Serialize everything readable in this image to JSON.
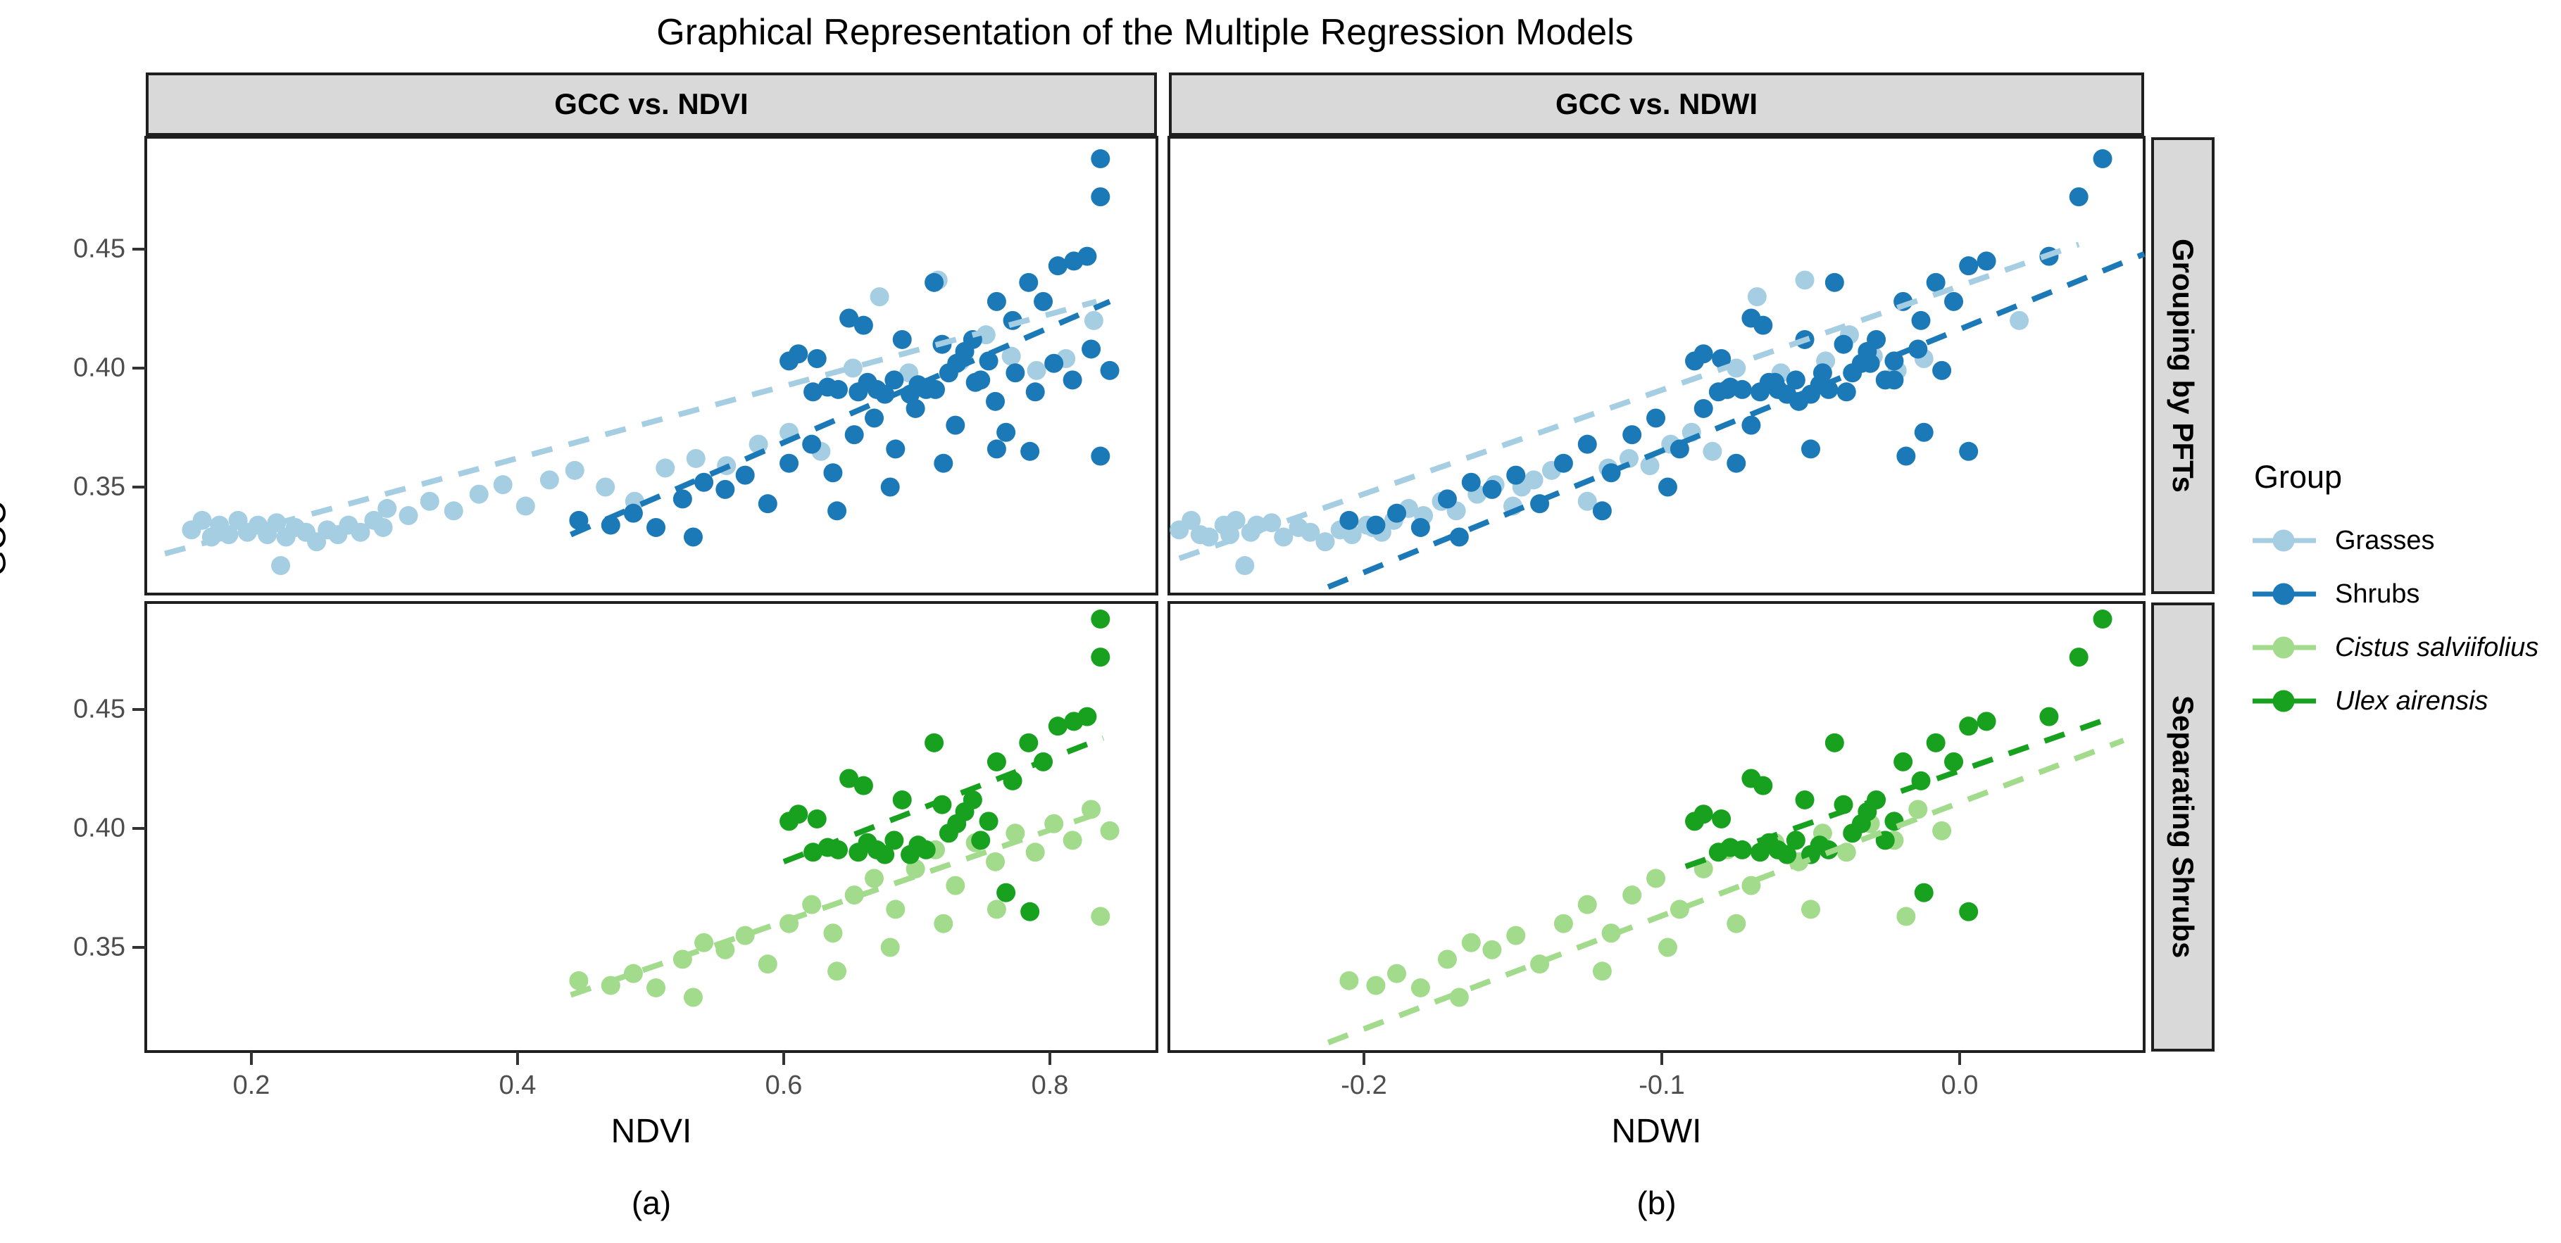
{
  "title": "Graphical Representation of the Multiple Regression Models",
  "facets": {
    "col_labels": [
      "GCC vs. NDVI",
      "GCC vs. NDWI"
    ],
    "row_labels": [
      "Grouping by PFTs",
      "Separating Shrubs"
    ]
  },
  "axes": {
    "y_title": "GCC",
    "x_titles": [
      "NDVI",
      "NDWI"
    ],
    "y_tick_labels": [
      "0.45",
      "0.40",
      "0.35"
    ],
    "x_tick_labels_ndvi": [
      "0.2",
      "0.4",
      "0.6",
      "0.8"
    ],
    "x_tick_labels_ndwi": [
      "-0.2",
      "-0.1",
      "0.0"
    ]
  },
  "captions": [
    "(a)",
    "(b)"
  ],
  "legend": {
    "title": "Group",
    "items": [
      {
        "label": "Grasses",
        "color": "#A6CEE3",
        "italic": false
      },
      {
        "label": "Shrubs",
        "color": "#1B79B7",
        "italic": false
      },
      {
        "label": "Cistus salviifolius",
        "color": "#A2DB8C",
        "italic": true
      },
      {
        "label": "Ulex airensis",
        "color": "#18A11F",
        "italic": true
      }
    ]
  },
  "colors": {
    "grasses": "#A6CEE3",
    "shrubs": "#1B79B7",
    "cistus": "#A2DB8C",
    "ulex": "#18A11F",
    "strip_bg": "#D9D9D9",
    "panel_border": "#1F1F1F",
    "tick_label": "#4D4D4D"
  },
  "chart_data": {
    "type": "scatter",
    "title": "Graphical Representation of the Multiple Regression Models",
    "facet_rows": [
      "Grouping by PFTs",
      "Separating Shrubs"
    ],
    "facet_cols": [
      "GCC vs. NDVI",
      "GCC vs. NDWI"
    ],
    "legend_position": "right",
    "grid": false,
    "y_axis": {
      "var": "GCC",
      "range": [
        0.302,
        0.497
      ],
      "ticks": [
        0.45,
        0.4,
        0.35
      ],
      "tick_labels": [
        "0.45",
        "0.40",
        "0.35"
      ]
    },
    "x_axes": [
      {
        "var": "NDVI",
        "range": [
          0.12,
          0.881
        ],
        "ticks": [
          0.2,
          0.4,
          0.6,
          0.8
        ],
        "tick_labels": [
          "0.2",
          "0.4",
          "0.6",
          "0.8"
        ]
      },
      {
        "var": "NDWI",
        "range": [
          -0.266,
          0.062
        ],
        "ticks": [
          -0.2,
          -0.1,
          0.0
        ],
        "tick_labels": [
          "-0.2",
          "-0.1",
          "0.0"
        ]
      }
    ],
    "panels": [
      {
        "row": "Grouping by PFTs",
        "col": "GCC vs. NDVI",
        "x_var": "NDVI",
        "series": [
          "Grasses",
          "Shrubs"
        ]
      },
      {
        "row": "Grouping by PFTs",
        "col": "GCC vs. NDWI",
        "x_var": "NDWI",
        "series": [
          "Grasses",
          "Shrubs"
        ]
      },
      {
        "row": "Separating Shrubs",
        "col": "GCC vs. NDVI",
        "x_var": "NDVI",
        "series": [
          "Cistus salviifolius",
          "Ulex airensis"
        ]
      },
      {
        "row": "Separating Shrubs",
        "col": "GCC vs. NDWI",
        "x_var": "NDWI",
        "series": [
          "Cistus salviifolius",
          "Ulex airensis"
        ]
      }
    ],
    "shrubs_series": {
      "color": "#1B79B7",
      "union_of": [
        "Cistus salviifolius",
        "Ulex airensis"
      ]
    },
    "point_format": [
      "NDVI",
      "NDWI",
      "GCC"
    ],
    "groups": {
      "Grasses": {
        "color": "#A6CEE3",
        "points": [
          [
            0.155,
            -0.262,
            0.332
          ],
          [
            0.163,
            -0.258,
            0.336
          ],
          [
            0.17,
            -0.252,
            0.329
          ],
          [
            0.176,
            -0.247,
            0.334
          ],
          [
            0.183,
            -0.255,
            0.33
          ],
          [
            0.19,
            -0.243,
            0.336
          ],
          [
            0.197,
            -0.238,
            0.331
          ],
          [
            0.205,
            -0.236,
            0.334
          ],
          [
            0.212,
            -0.245,
            0.33
          ],
          [
            0.219,
            -0.231,
            0.335
          ],
          [
            0.226,
            -0.227,
            0.329
          ],
          [
            0.233,
            -0.222,
            0.333
          ],
          [
            0.222,
            -0.24,
            0.317
          ],
          [
            0.241,
            -0.218,
            0.331
          ],
          [
            0.249,
            -0.213,
            0.327
          ],
          [
            0.257,
            -0.208,
            0.332
          ],
          [
            0.265,
            -0.204,
            0.33
          ],
          [
            0.273,
            -0.199,
            0.334
          ],
          [
            0.282,
            -0.194,
            0.331
          ],
          [
            0.292,
            -0.19,
            0.336
          ],
          [
            0.302,
            -0.185,
            0.341
          ],
          [
            0.299,
            -0.197,
            0.333
          ],
          [
            0.318,
            -0.18,
            0.338
          ],
          [
            0.334,
            -0.174,
            0.344
          ],
          [
            0.352,
            -0.169,
            0.34
          ],
          [
            0.371,
            -0.162,
            0.347
          ],
          [
            0.389,
            -0.156,
            0.351
          ],
          [
            0.406,
            -0.15,
            0.342
          ],
          [
            0.424,
            -0.143,
            0.353
          ],
          [
            0.443,
            -0.137,
            0.357
          ],
          [
            0.466,
            -0.147,
            0.35
          ],
          [
            0.488,
            -0.125,
            0.344
          ],
          [
            0.511,
            -0.118,
            0.358
          ],
          [
            0.534,
            -0.111,
            0.362
          ],
          [
            0.557,
            -0.104,
            0.359
          ],
          [
            0.581,
            -0.097,
            0.368
          ],
          [
            0.604,
            -0.09,
            0.373
          ],
          [
            0.628,
            -0.083,
            0.365
          ],
          [
            0.652,
            -0.075,
            0.4
          ],
          [
            0.672,
            -0.068,
            0.43
          ],
          [
            0.694,
            -0.06,
            0.398
          ],
          [
            0.716,
            -0.052,
            0.437
          ],
          [
            0.733,
            -0.045,
            0.403
          ],
          [
            0.752,
            -0.037,
            0.414
          ],
          [
            0.771,
            -0.029,
            0.405
          ],
          [
            0.79,
            -0.021,
            0.399
          ],
          [
            0.812,
            -0.012,
            0.404
          ],
          [
            0.833,
            0.02,
            0.42
          ]
        ]
      },
      "Cistus salviifolius": {
        "color": "#A2DB8C",
        "points": [
          [
            0.446,
            -0.205,
            0.336
          ],
          [
            0.47,
            -0.196,
            0.334
          ],
          [
            0.487,
            -0.189,
            0.339
          ],
          [
            0.504,
            -0.181,
            0.333
          ],
          [
            0.524,
            -0.172,
            0.345
          ],
          [
            0.54,
            -0.164,
            0.352
          ],
          [
            0.556,
            -0.157,
            0.349
          ],
          [
            0.571,
            -0.149,
            0.355
          ],
          [
            0.532,
            -0.168,
            0.329
          ],
          [
            0.588,
            -0.141,
            0.343
          ],
          [
            0.604,
            -0.133,
            0.36
          ],
          [
            0.621,
            -0.125,
            0.368
          ],
          [
            0.637,
            -0.117,
            0.356
          ],
          [
            0.653,
            -0.11,
            0.372
          ],
          [
            0.668,
            -0.102,
            0.379
          ],
          [
            0.684,
            -0.094,
            0.366
          ],
          [
            0.699,
            -0.086,
            0.383
          ],
          [
            0.714,
            -0.078,
            0.391
          ],
          [
            0.729,
            -0.07,
            0.376
          ],
          [
            0.744,
            -0.062,
            0.394
          ],
          [
            0.759,
            -0.054,
            0.386
          ],
          [
            0.774,
            -0.046,
            0.398
          ],
          [
            0.789,
            -0.038,
            0.39
          ],
          [
            0.803,
            -0.03,
            0.402
          ],
          [
            0.817,
            -0.022,
            0.395
          ],
          [
            0.831,
            -0.014,
            0.408
          ],
          [
            0.845,
            -0.006,
            0.399
          ],
          [
            0.838,
            -0.018,
            0.363
          ],
          [
            0.76,
            -0.05,
            0.366
          ],
          [
            0.72,
            -0.075,
            0.36
          ],
          [
            0.68,
            -0.098,
            0.35
          ],
          [
            0.64,
            -0.12,
            0.34
          ]
        ]
      },
      "Ulex airensis": {
        "color": "#18A11F",
        "points": [
          [
            0.604,
            -0.089,
            0.403
          ],
          [
            0.611,
            -0.086,
            0.406
          ],
          [
            0.622,
            -0.081,
            0.39
          ],
          [
            0.633,
            -0.077,
            0.392
          ],
          [
            0.641,
            -0.073,
            0.391
          ],
          [
            0.649,
            -0.07,
            0.421
          ],
          [
            0.656,
            -0.067,
            0.39
          ],
          [
            0.663,
            -0.064,
            0.394
          ],
          [
            0.67,
            -0.061,
            0.391
          ],
          [
            0.676,
            -0.058,
            0.389
          ],
          [
            0.683,
            -0.055,
            0.395
          ],
          [
            0.689,
            -0.052,
            0.412
          ],
          [
            0.695,
            -0.05,
            0.389
          ],
          [
            0.701,
            -0.047,
            0.393
          ],
          [
            0.707,
            -0.044,
            0.391
          ],
          [
            0.713,
            -0.042,
            0.436
          ],
          [
            0.719,
            -0.039,
            0.41
          ],
          [
            0.724,
            -0.036,
            0.398
          ],
          [
            0.73,
            -0.033,
            0.402
          ],
          [
            0.736,
            -0.031,
            0.407
          ],
          [
            0.742,
            -0.028,
            0.412
          ],
          [
            0.748,
            -0.025,
            0.395
          ],
          [
            0.754,
            -0.022,
            0.403
          ],
          [
            0.76,
            -0.019,
            0.428
          ],
          [
            0.767,
            -0.012,
            0.373
          ],
          [
            0.772,
            -0.013,
            0.42
          ],
          [
            0.784,
            -0.008,
            0.436
          ],
          [
            0.785,
            0.003,
            0.365
          ],
          [
            0.795,
            -0.002,
            0.428
          ],
          [
            0.806,
            0.003,
            0.443
          ],
          [
            0.818,
            0.009,
            0.445
          ],
          [
            0.828,
            0.03,
            0.447
          ],
          [
            0.838,
            0.048,
            0.488
          ],
          [
            0.838,
            0.04,
            0.472
          ],
          [
            0.625,
            -0.08,
            0.404
          ],
          [
            0.66,
            -0.066,
            0.418
          ]
        ]
      }
    },
    "trend_lines": {
      "NDVI": {
        "Grasses": [
          [
            0.135,
            0.322
          ],
          [
            0.835,
            0.428
          ]
        ],
        "Shrubs": [
          [
            0.44,
            0.33
          ],
          [
            0.845,
            0.428
          ]
        ],
        "Cistus salviifolius": [
          [
            0.44,
            0.33
          ],
          [
            0.845,
            0.408
          ]
        ],
        "Ulex airensis": [
          [
            0.6,
            0.386
          ],
          [
            0.84,
            0.438
          ]
        ]
      },
      "NDWI": {
        "Grasses": [
          [
            -0.262,
            0.32
          ],
          [
            0.04,
            0.452
          ]
        ],
        "Shrubs": [
          [
            -0.212,
            0.308
          ],
          [
            0.062,
            0.448
          ]
        ],
        "Cistus salviifolius": [
          [
            -0.212,
            0.31
          ],
          [
            0.055,
            0.437
          ]
        ],
        "Ulex airensis": [
          [
            -0.092,
            0.384
          ],
          [
            0.052,
            0.447
          ]
        ]
      }
    }
  }
}
